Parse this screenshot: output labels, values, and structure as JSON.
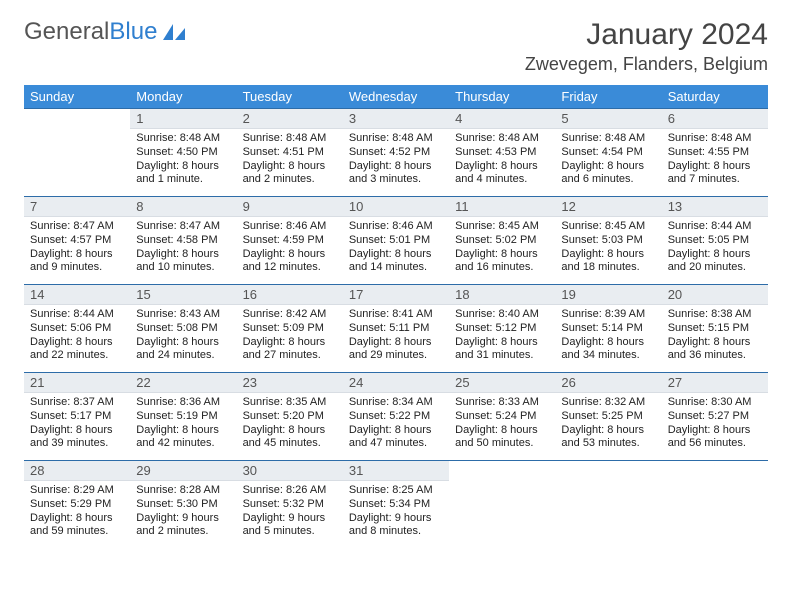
{
  "colors": {
    "header_bg": "#3a8bd8",
    "header_text": "#ffffff",
    "daynum_bg": "#e9edf1",
    "row_border": "#2d6ca8",
    "logo_gray": "#555555",
    "logo_blue": "#2f7fcf",
    "text": "#222222"
  },
  "logo": {
    "part1": "General",
    "part2": "Blue"
  },
  "title": "January 2024",
  "location": "Zwevegem, Flanders, Belgium",
  "day_headers": [
    "Sunday",
    "Monday",
    "Tuesday",
    "Wednesday",
    "Thursday",
    "Friday",
    "Saturday"
  ],
  "weeks": [
    [
      {
        "n": "",
        "sr": "",
        "ss": "",
        "d1": "",
        "d2": ""
      },
      {
        "n": "1",
        "sr": "Sunrise: 8:48 AM",
        "ss": "Sunset: 4:50 PM",
        "d1": "Daylight: 8 hours",
        "d2": "and 1 minute."
      },
      {
        "n": "2",
        "sr": "Sunrise: 8:48 AM",
        "ss": "Sunset: 4:51 PM",
        "d1": "Daylight: 8 hours",
        "d2": "and 2 minutes."
      },
      {
        "n": "3",
        "sr": "Sunrise: 8:48 AM",
        "ss": "Sunset: 4:52 PM",
        "d1": "Daylight: 8 hours",
        "d2": "and 3 minutes."
      },
      {
        "n": "4",
        "sr": "Sunrise: 8:48 AM",
        "ss": "Sunset: 4:53 PM",
        "d1": "Daylight: 8 hours",
        "d2": "and 4 minutes."
      },
      {
        "n": "5",
        "sr": "Sunrise: 8:48 AM",
        "ss": "Sunset: 4:54 PM",
        "d1": "Daylight: 8 hours",
        "d2": "and 6 minutes."
      },
      {
        "n": "6",
        "sr": "Sunrise: 8:48 AM",
        "ss": "Sunset: 4:55 PM",
        "d1": "Daylight: 8 hours",
        "d2": "and 7 minutes."
      }
    ],
    [
      {
        "n": "7",
        "sr": "Sunrise: 8:47 AM",
        "ss": "Sunset: 4:57 PM",
        "d1": "Daylight: 8 hours",
        "d2": "and 9 minutes."
      },
      {
        "n": "8",
        "sr": "Sunrise: 8:47 AM",
        "ss": "Sunset: 4:58 PM",
        "d1": "Daylight: 8 hours",
        "d2": "and 10 minutes."
      },
      {
        "n": "9",
        "sr": "Sunrise: 8:46 AM",
        "ss": "Sunset: 4:59 PM",
        "d1": "Daylight: 8 hours",
        "d2": "and 12 minutes."
      },
      {
        "n": "10",
        "sr": "Sunrise: 8:46 AM",
        "ss": "Sunset: 5:01 PM",
        "d1": "Daylight: 8 hours",
        "d2": "and 14 minutes."
      },
      {
        "n": "11",
        "sr": "Sunrise: 8:45 AM",
        "ss": "Sunset: 5:02 PM",
        "d1": "Daylight: 8 hours",
        "d2": "and 16 minutes."
      },
      {
        "n": "12",
        "sr": "Sunrise: 8:45 AM",
        "ss": "Sunset: 5:03 PM",
        "d1": "Daylight: 8 hours",
        "d2": "and 18 minutes."
      },
      {
        "n": "13",
        "sr": "Sunrise: 8:44 AM",
        "ss": "Sunset: 5:05 PM",
        "d1": "Daylight: 8 hours",
        "d2": "and 20 minutes."
      }
    ],
    [
      {
        "n": "14",
        "sr": "Sunrise: 8:44 AM",
        "ss": "Sunset: 5:06 PM",
        "d1": "Daylight: 8 hours",
        "d2": "and 22 minutes."
      },
      {
        "n": "15",
        "sr": "Sunrise: 8:43 AM",
        "ss": "Sunset: 5:08 PM",
        "d1": "Daylight: 8 hours",
        "d2": "and 24 minutes."
      },
      {
        "n": "16",
        "sr": "Sunrise: 8:42 AM",
        "ss": "Sunset: 5:09 PM",
        "d1": "Daylight: 8 hours",
        "d2": "and 27 minutes."
      },
      {
        "n": "17",
        "sr": "Sunrise: 8:41 AM",
        "ss": "Sunset: 5:11 PM",
        "d1": "Daylight: 8 hours",
        "d2": "and 29 minutes."
      },
      {
        "n": "18",
        "sr": "Sunrise: 8:40 AM",
        "ss": "Sunset: 5:12 PM",
        "d1": "Daylight: 8 hours",
        "d2": "and 31 minutes."
      },
      {
        "n": "19",
        "sr": "Sunrise: 8:39 AM",
        "ss": "Sunset: 5:14 PM",
        "d1": "Daylight: 8 hours",
        "d2": "and 34 minutes."
      },
      {
        "n": "20",
        "sr": "Sunrise: 8:38 AM",
        "ss": "Sunset: 5:15 PM",
        "d1": "Daylight: 8 hours",
        "d2": "and 36 minutes."
      }
    ],
    [
      {
        "n": "21",
        "sr": "Sunrise: 8:37 AM",
        "ss": "Sunset: 5:17 PM",
        "d1": "Daylight: 8 hours",
        "d2": "and 39 minutes."
      },
      {
        "n": "22",
        "sr": "Sunrise: 8:36 AM",
        "ss": "Sunset: 5:19 PM",
        "d1": "Daylight: 8 hours",
        "d2": "and 42 minutes."
      },
      {
        "n": "23",
        "sr": "Sunrise: 8:35 AM",
        "ss": "Sunset: 5:20 PM",
        "d1": "Daylight: 8 hours",
        "d2": "and 45 minutes."
      },
      {
        "n": "24",
        "sr": "Sunrise: 8:34 AM",
        "ss": "Sunset: 5:22 PM",
        "d1": "Daylight: 8 hours",
        "d2": "and 47 minutes."
      },
      {
        "n": "25",
        "sr": "Sunrise: 8:33 AM",
        "ss": "Sunset: 5:24 PM",
        "d1": "Daylight: 8 hours",
        "d2": "and 50 minutes."
      },
      {
        "n": "26",
        "sr": "Sunrise: 8:32 AM",
        "ss": "Sunset: 5:25 PM",
        "d1": "Daylight: 8 hours",
        "d2": "and 53 minutes."
      },
      {
        "n": "27",
        "sr": "Sunrise: 8:30 AM",
        "ss": "Sunset: 5:27 PM",
        "d1": "Daylight: 8 hours",
        "d2": "and 56 minutes."
      }
    ],
    [
      {
        "n": "28",
        "sr": "Sunrise: 8:29 AM",
        "ss": "Sunset: 5:29 PM",
        "d1": "Daylight: 8 hours",
        "d2": "and 59 minutes."
      },
      {
        "n": "29",
        "sr": "Sunrise: 8:28 AM",
        "ss": "Sunset: 5:30 PM",
        "d1": "Daylight: 9 hours",
        "d2": "and 2 minutes."
      },
      {
        "n": "30",
        "sr": "Sunrise: 8:26 AM",
        "ss": "Sunset: 5:32 PM",
        "d1": "Daylight: 9 hours",
        "d2": "and 5 minutes."
      },
      {
        "n": "31",
        "sr": "Sunrise: 8:25 AM",
        "ss": "Sunset: 5:34 PM",
        "d1": "Daylight: 9 hours",
        "d2": "and 8 minutes."
      },
      {
        "n": "",
        "sr": "",
        "ss": "",
        "d1": "",
        "d2": ""
      },
      {
        "n": "",
        "sr": "",
        "ss": "",
        "d1": "",
        "d2": ""
      },
      {
        "n": "",
        "sr": "",
        "ss": "",
        "d1": "",
        "d2": ""
      }
    ]
  ]
}
